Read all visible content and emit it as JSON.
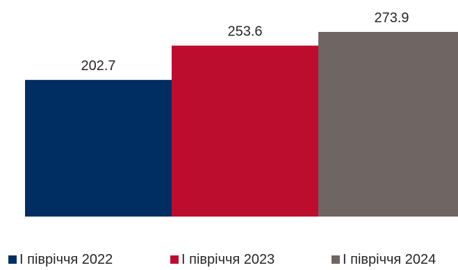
{
  "chart_data": {
    "type": "bar",
    "categories": [
      "I півріччя 2022",
      "I півріччя 2023",
      "I півріччя 2024"
    ],
    "values": [
      202.7,
      253.6,
      273.9
    ],
    "value_labels": [
      "202.7",
      "253.6",
      "273.9"
    ],
    "colors": [
      "#002d62",
      "#bd0d2e",
      "#6f6562"
    ],
    "ylim": [
      0,
      273.9
    ],
    "grid": false,
    "legend_position": "bottom"
  }
}
